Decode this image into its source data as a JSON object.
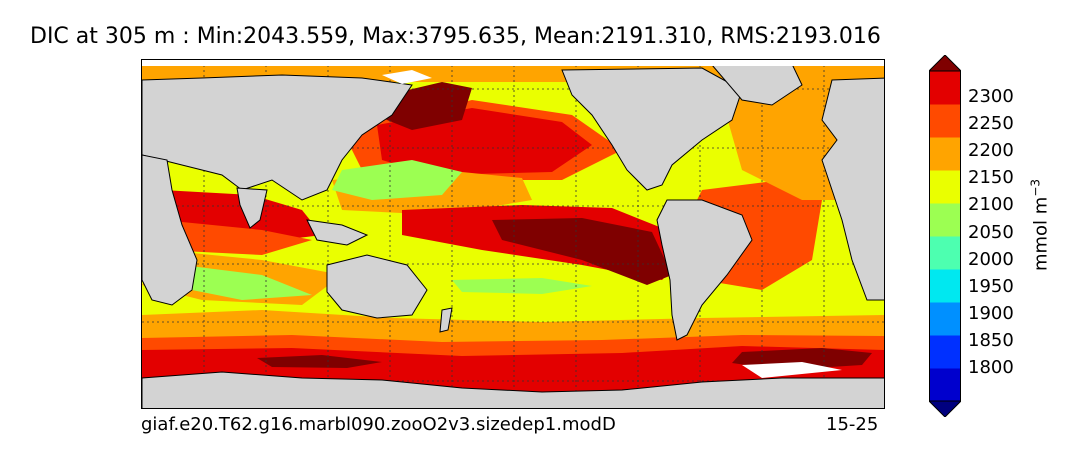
{
  "title": "DIC at 305 m : Min:2043.559, Max:3795.635, Mean:2191.310, RMS:2193.016",
  "footer": {
    "case_name": "giaf.e20.T62.g16.marbl090.zooO2v3.sizedep1.modD",
    "years": "15-25"
  },
  "colorbar": {
    "label": "mmol m",
    "label_exponent": "−3",
    "ticks": [
      "2300",
      "2250",
      "2200",
      "2150",
      "2100",
      "2050",
      "2000",
      "1950",
      "1900",
      "1850",
      "1800"
    ],
    "level_colors": [
      "#00007f",
      "#0000cd",
      "#0030ff",
      "#0090ff",
      "#00e8f0",
      "#4dffb0",
      "#9cff52",
      "#eaff00",
      "#ffa400",
      "#ff4a00",
      "#e30000",
      "#7f0000"
    ]
  },
  "map": {
    "land_color": "#d3d3d3",
    "ice_color": "#ffffff",
    "gridlines": "dotted"
  }
}
